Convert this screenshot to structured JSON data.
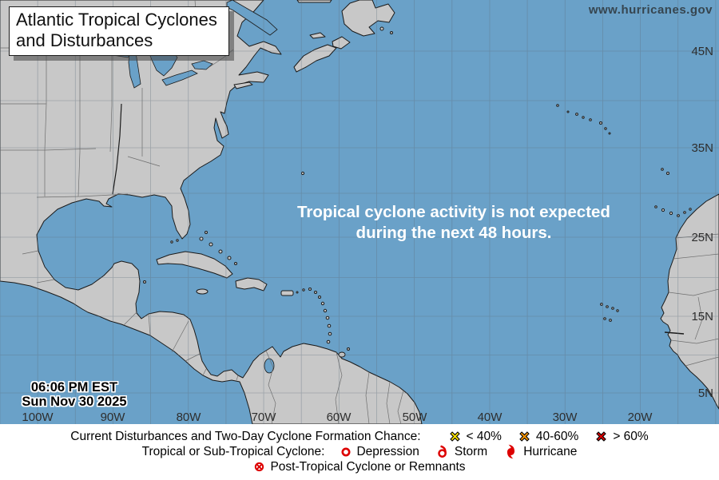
{
  "header": {
    "title": "Atlantic Tropical Cyclones and Disturbances",
    "website": "www.hurricanes.gov"
  },
  "map": {
    "message_line1": "Tropical cyclone activity is not expected",
    "message_line2": "during the next 48 hours.",
    "timestamp": {
      "time": "06:06 PM EST",
      "date": "Sun Nov 30 2025"
    },
    "colors": {
      "ocean": "#6AA1C8",
      "land": "#C8C8C8",
      "coast": "#1a1a1a",
      "grid": "#5f6f7d"
    },
    "lat_labels": [
      {
        "text": "45N"
      },
      {
        "text": "35N"
      },
      {
        "text": "25N"
      },
      {
        "text": "15N"
      },
      {
        "text": "5N"
      }
    ],
    "lon_labels": [
      {
        "text": "100W"
      },
      {
        "text": "90W"
      },
      {
        "text": "80W"
      },
      {
        "text": "70W"
      },
      {
        "text": "60W"
      },
      {
        "text": "50W"
      },
      {
        "text": "40W"
      },
      {
        "text": "30W"
      },
      {
        "text": "20W"
      }
    ]
  },
  "legend": {
    "formation_label": "Current Disturbances and Two-Day Cyclone Formation Chance:",
    "chances": [
      {
        "label": "< 40%",
        "color": "#FFE600"
      },
      {
        "label": "40-60%",
        "color": "#FF9900"
      },
      {
        "label": "> 60%",
        "color": "#E30000"
      }
    ],
    "cyclone_label": "Tropical or Sub-Tropical Cyclone:",
    "cyclone_types": [
      {
        "label": "Depression"
      },
      {
        "label": "Storm"
      },
      {
        "label": "Hurricane"
      }
    ],
    "post_tropical_label": "Post-Tropical Cyclone or Remnants",
    "symbol_color": "#DD0000"
  }
}
